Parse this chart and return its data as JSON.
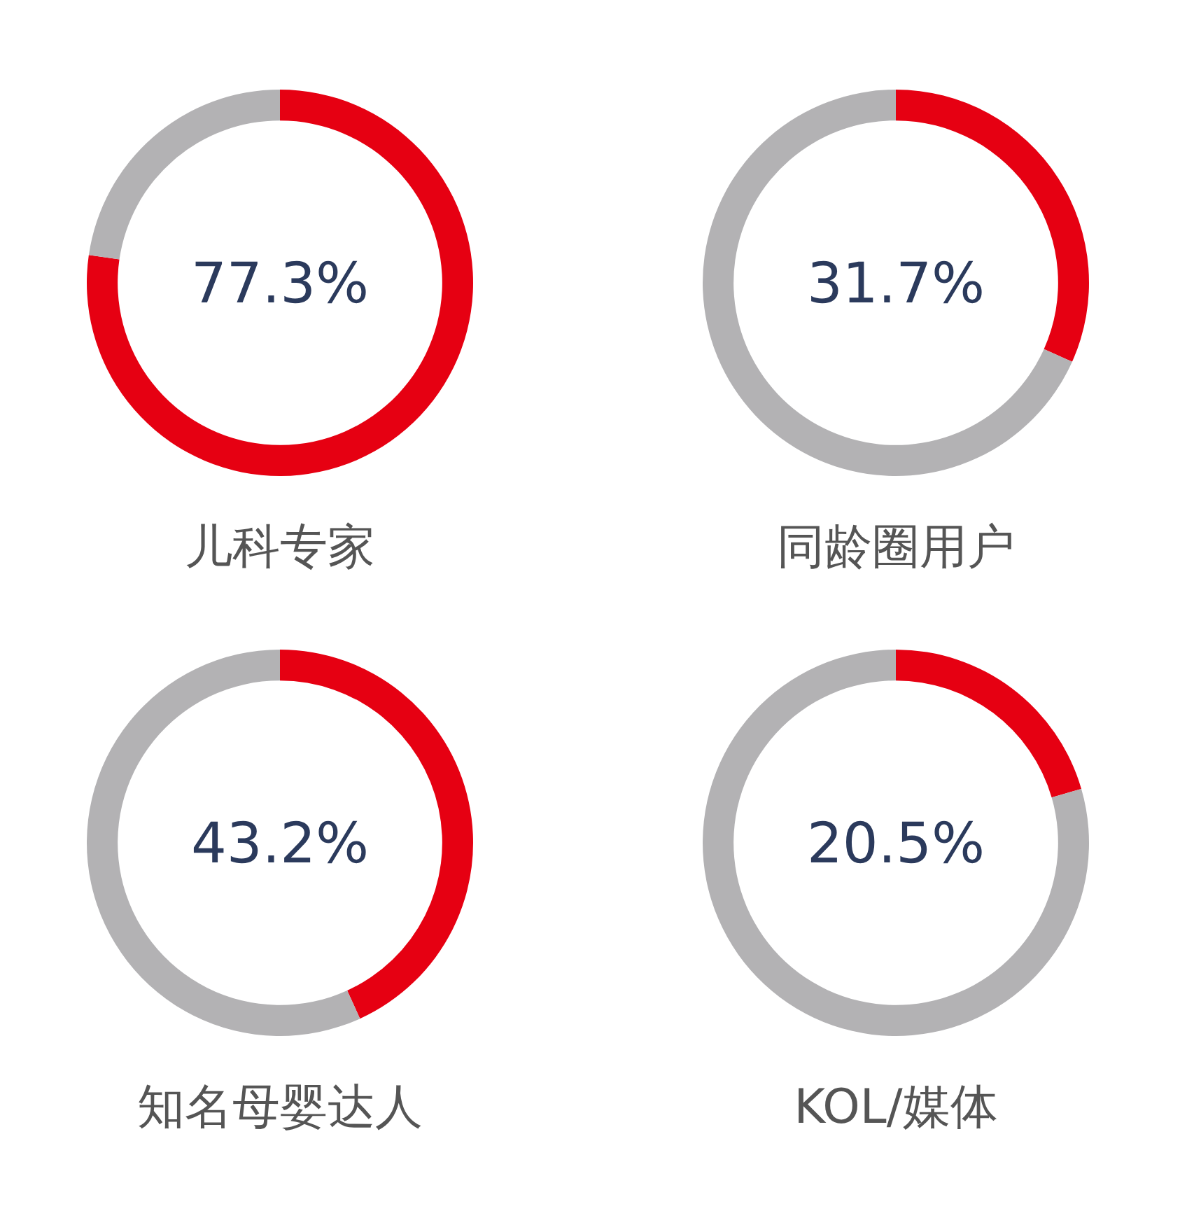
{
  "chart_data": [
    {
      "type": "donut",
      "title": "儿科专家",
      "categories": [
        null,
        null
      ],
      "values": [
        77.3,
        22.7
      ],
      "colors": [
        "#e60012",
        "#b3b2b4"
      ],
      "annotations": [
        "77.3%"
      ]
    },
    {
      "type": "donut",
      "title": "同龄圈用户",
      "categories": [
        null,
        null
      ],
      "values": [
        31.7,
        68.3
      ],
      "colors": [
        "#e60012",
        "#b3b2b4"
      ],
      "annotations": [
        "31.7%"
      ]
    },
    {
      "type": "donut",
      "title": "知名母婴达人",
      "categories": [
        null,
        null
      ],
      "values": [
        43.2,
        56.8
      ],
      "colors": [
        "#e60012",
        "#b3b2b4"
      ],
      "annotations": [
        "43.2%"
      ]
    },
    {
      "type": "donut",
      "title": "KOL/媒体",
      "categories": [
        null,
        null
      ],
      "values": [
        20.5,
        79.5
      ],
      "colors": [
        "#e60012",
        "#b3b2b4"
      ],
      "annotations": [
        "20.5%"
      ]
    }
  ]
}
